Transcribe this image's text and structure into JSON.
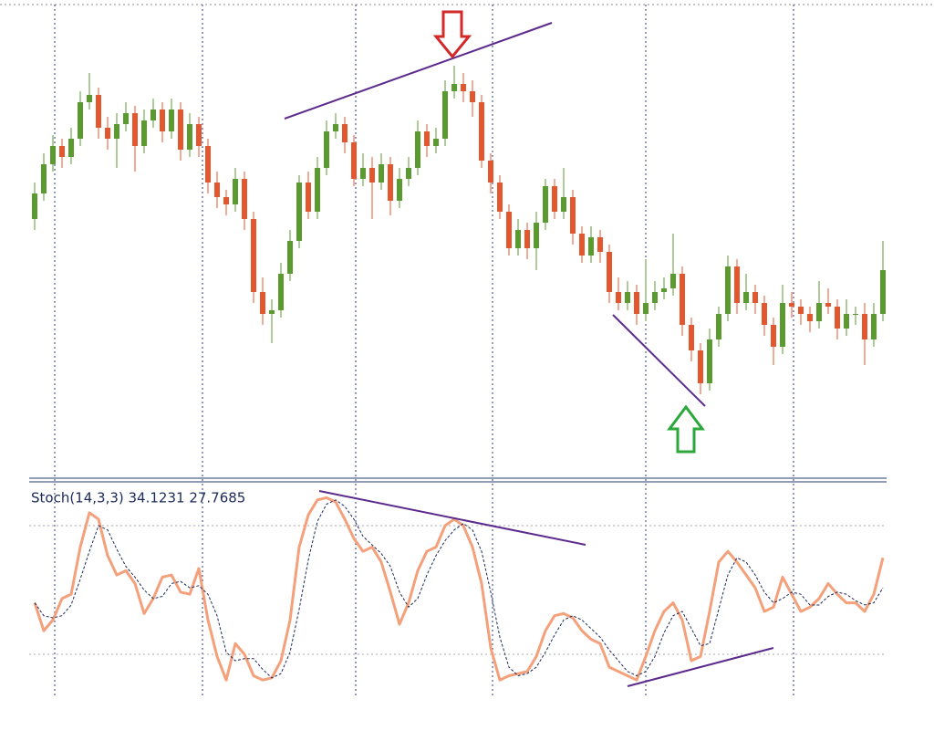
{
  "chart_data": [
    {
      "type": "candlestick",
      "up_color": "#5b9a2f",
      "down_color": "#e4572e",
      "ylim": [
        0,
        130
      ],
      "ohlc": [
        [
          70,
          80,
          67,
          77
        ],
        [
          77,
          88,
          75,
          85
        ],
        [
          85,
          93,
          83,
          90
        ],
        [
          90,
          92,
          84,
          87
        ],
        [
          87,
          95,
          85,
          92
        ],
        [
          92,
          105,
          90,
          102
        ],
        [
          102,
          110,
          100,
          104
        ],
        [
          104,
          106,
          92,
          95
        ],
        [
          95,
          98,
          89,
          92
        ],
        [
          92,
          99,
          84,
          96
        ],
        [
          96,
          102,
          94,
          99
        ],
        [
          99,
          101,
          83,
          90
        ],
        [
          90,
          100,
          88,
          97
        ],
        [
          97,
          103,
          95,
          100
        ],
        [
          100,
          102,
          91,
          94
        ],
        [
          94,
          103,
          92,
          100
        ],
        [
          100,
          102,
          86,
          89
        ],
        [
          89,
          99,
          87,
          96
        ],
        [
          96,
          98,
          87,
          90
        ],
        [
          90,
          92,
          77,
          80
        ],
        [
          80,
          83,
          73,
          76
        ],
        [
          76,
          78,
          71,
          74
        ],
        [
          74,
          84,
          72,
          81
        ],
        [
          81,
          83,
          67,
          70
        ],
        [
          70,
          72,
          47,
          50
        ],
        [
          50,
          54,
          41,
          44
        ],
        [
          44,
          48,
          36,
          45
        ],
        [
          45,
          58,
          43,
          55
        ],
        [
          55,
          67,
          53,
          64
        ],
        [
          64,
          82,
          62,
          80
        ],
        [
          80,
          83,
          70,
          72
        ],
        [
          72,
          87,
          70,
          84
        ],
        [
          84,
          97,
          82,
          94
        ],
        [
          94,
          99,
          92,
          96
        ],
        [
          96,
          98,
          88,
          91
        ],
        [
          91,
          93,
          79,
          81
        ],
        [
          81,
          88,
          79,
          84
        ],
        [
          84,
          87,
          70,
          80
        ],
        [
          80,
          88,
          78,
          85
        ],
        [
          85,
          87,
          71,
          75
        ],
        [
          75,
          84,
          73,
          81
        ],
        [
          81,
          87,
          79,
          84
        ],
        [
          84,
          97,
          82,
          94
        ],
        [
          94,
          96,
          87,
          90
        ],
        [
          90,
          95,
          88,
          92
        ],
        [
          92,
          108,
          90,
          105
        ],
        [
          105,
          112,
          103,
          107
        ],
        [
          107,
          110,
          102,
          105
        ],
        [
          105,
          108,
          98,
          102
        ],
        [
          102,
          104,
          84,
          86
        ],
        [
          86,
          88,
          77,
          80
        ],
        [
          80,
          82,
          70,
          72
        ],
        [
          72,
          74,
          60,
          62
        ],
        [
          62,
          70,
          60,
          67
        ],
        [
          67,
          69,
          59,
          62
        ],
        [
          62,
          72,
          56,
          69
        ],
        [
          69,
          81,
          67,
          79
        ],
        [
          79,
          81,
          70,
          72
        ],
        [
          72,
          84,
          70,
          76
        ],
        [
          76,
          78,
          63,
          66
        ],
        [
          66,
          68,
          58,
          60
        ],
        [
          60,
          68,
          58,
          65
        ],
        [
          65,
          67,
          58,
          61
        ],
        [
          61,
          63,
          47,
          50
        ],
        [
          50,
          54,
          45,
          47
        ],
        [
          47,
          53,
          45,
          50
        ],
        [
          50,
          52,
          41,
          44
        ],
        [
          44,
          59,
          42,
          47
        ],
        [
          47,
          53,
          45,
          50
        ],
        [
          50,
          54,
          48,
          51
        ],
        [
          51,
          66,
          49,
          55
        ],
        [
          55,
          57,
          38,
          41
        ],
        [
          41,
          43,
          31,
          34
        ],
        [
          34,
          36,
          22,
          25
        ],
        [
          25,
          40,
          23,
          37
        ],
        [
          37,
          46,
          35,
          44
        ],
        [
          44,
          60,
          42,
          57
        ],
        [
          57,
          59,
          44,
          47
        ],
        [
          47,
          55,
          45,
          50
        ],
        [
          50,
          52,
          44,
          47
        ],
        [
          47,
          49,
          38,
          41
        ],
        [
          41,
          43,
          30,
          35
        ],
        [
          35,
          52,
          33,
          47
        ],
        [
          47,
          50,
          43,
          46
        ],
        [
          46,
          48,
          41,
          44
        ],
        [
          44,
          46,
          39,
          42
        ],
        [
          42,
          53,
          40,
          47
        ],
        [
          47,
          51,
          44,
          46
        ],
        [
          46,
          48,
          37,
          40
        ],
        [
          40,
          48,
          38,
          44
        ],
        [
          44,
          46,
          41,
          44
        ],
        [
          44,
          47,
          30,
          37
        ],
        [
          37,
          47,
          35,
          44
        ],
        [
          44,
          64,
          42,
          56
        ]
      ]
    },
    {
      "type": "line",
      "title": "Stoch(14,3,3) 34.1231 27.7685",
      "ylim": [
        0,
        100
      ],
      "levels": [
        20,
        80
      ],
      "series": [
        {
          "color": "#f4a07a",
          "values": [
            44,
            31,
            36,
            46,
            48,
            70,
            86,
            83,
            66,
            57,
            59,
            53,
            39,
            46,
            56,
            57,
            49,
            48,
            60,
            36,
            19,
            8,
            25,
            20,
            10,
            8,
            9,
            17,
            36,
            70,
            85,
            92,
            93,
            91,
            83,
            74,
            68,
            70,
            63,
            49,
            34,
            44,
            59,
            68,
            70,
            80,
            83,
            80,
            70,
            53,
            23,
            8,
            10,
            11,
            12,
            19,
            31,
            38,
            39,
            37,
            31,
            27,
            25,
            14,
            12,
            10,
            8,
            19,
            31,
            40,
            44,
            36,
            17,
            19,
            40,
            63,
            68,
            63,
            57,
            51,
            40,
            42,
            56,
            48,
            40,
            42,
            46,
            53,
            48,
            44,
            44,
            40,
            48,
            65
          ]
        },
        {
          "color": "#1c2a5a",
          "values": [
            44,
            38,
            37,
            38,
            43,
            55,
            68,
            80,
            78,
            69,
            61,
            56,
            50,
            46,
            47,
            53,
            54,
            51,
            52,
            48,
            38,
            21,
            17,
            18,
            18,
            13,
            9,
            11,
            21,
            41,
            64,
            82,
            90,
            92,
            89,
            83,
            75,
            71,
            67,
            61,
            49,
            42,
            46,
            57,
            66,
            73,
            78,
            81,
            78,
            68,
            49,
            28,
            14,
            10,
            11,
            14,
            21,
            29,
            36,
            38,
            36,
            32,
            28,
            22,
            17,
            12,
            10,
            12,
            19,
            30,
            38,
            40,
            32,
            24,
            25,
            41,
            57,
            65,
            63,
            57,
            49,
            44,
            46,
            49,
            48,
            43,
            43,
            47,
            49,
            48,
            45,
            43,
            44,
            51
          ]
        }
      ]
    }
  ]
}
